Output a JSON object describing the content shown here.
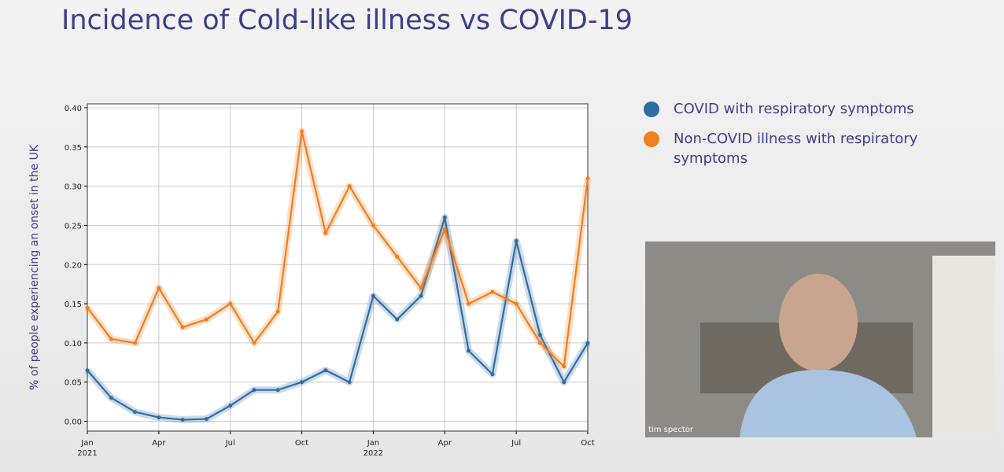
{
  "chart_data": {
    "type": "line",
    "title": "Incidence of Cold-like illness vs COVID-19",
    "ylabel": "% of people experiencing an onset in the UK",
    "x": [
      "2021-01",
      "2021-02",
      "2021-03",
      "2021-04",
      "2021-05",
      "2021-06",
      "2021-07",
      "2021-08",
      "2021-09",
      "2021-10",
      "2021-11",
      "2021-12",
      "2022-01",
      "2022-02",
      "2022-03",
      "2022-04",
      "2022-05",
      "2022-06",
      "2022-07",
      "2022-08",
      "2022-09",
      "2022-10"
    ],
    "series": [
      {
        "name": "COVID with respiratory symptoms",
        "color": "#2e6da4",
        "values": [
          0.065,
          0.03,
          0.012,
          0.005,
          0.002,
          0.003,
          0.02,
          0.04,
          0.04,
          0.05,
          0.065,
          0.05,
          0.16,
          0.13,
          0.16,
          0.26,
          0.09,
          0.06,
          0.23,
          0.11,
          0.05,
          0.1
        ]
      },
      {
        "name": "Non-COVID illness with respiratory symptoms",
        "color": "#f07f1e",
        "values": [
          0.145,
          0.105,
          0.1,
          0.17,
          0.12,
          0.13,
          0.15,
          0.1,
          0.14,
          0.37,
          0.24,
          0.3,
          0.25,
          0.21,
          0.17,
          0.245,
          0.15,
          0.165,
          0.15,
          0.1,
          0.07,
          0.31
        ]
      }
    ],
    "xlim": [
      "2021-01",
      "2022-10"
    ],
    "xticks": [
      {
        "value": "2021-01",
        "label": "Jan",
        "year": "2021"
      },
      {
        "value": "2021-04",
        "label": "Apr"
      },
      {
        "value": "2021-07",
        "label": "Jul"
      },
      {
        "value": "2021-10",
        "label": "Oct"
      },
      {
        "value": "2022-01",
        "label": "Jan",
        "year": "2022"
      },
      {
        "value": "2022-04",
        "label": "Apr"
      },
      {
        "value": "2022-07",
        "label": "Jul"
      },
      {
        "value": "2022-10",
        "label": "Oct"
      }
    ],
    "ylim": [
      -0.0125,
      0.405
    ],
    "yticks": [
      {
        "value": 0,
        "label": "0.00"
      },
      {
        "value": 0.05,
        "label": "0.05"
      },
      {
        "value": 0.1,
        "label": "0.10"
      },
      {
        "value": 0.15,
        "label": "0.15"
      },
      {
        "value": 0.2,
        "label": "0.20"
      },
      {
        "value": 0.25,
        "label": "0.25"
      },
      {
        "value": 0.3,
        "label": "0.30"
      },
      {
        "value": 0.35,
        "label": "0.35"
      },
      {
        "value": 0.4,
        "label": "0.40"
      }
    ],
    "grid": true
  },
  "video": {
    "caption": "tim spector"
  }
}
